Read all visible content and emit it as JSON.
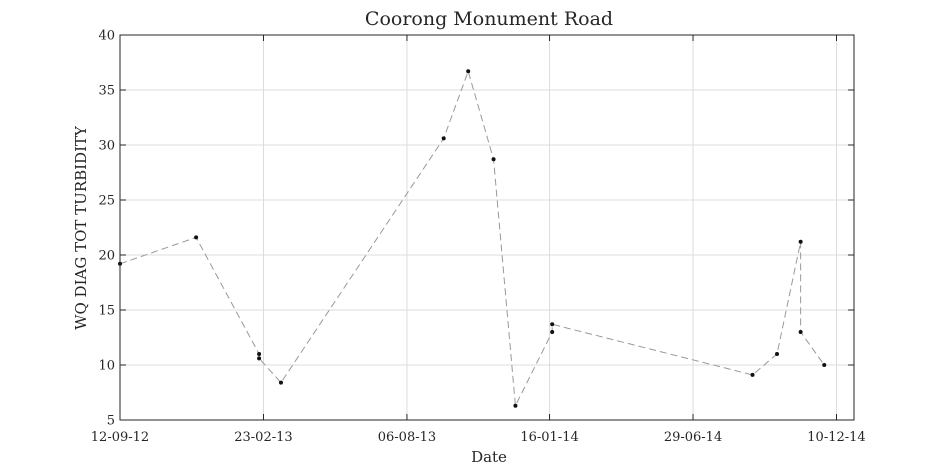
{
  "chart_data": {
    "type": "line",
    "title": "Coorong Monument Road",
    "xlabel": "Date",
    "ylabel": "WQ DIAG TOT TURBIDITY",
    "x_type": "date",
    "xlim": [
      "2012-09-12",
      "2014-12-30"
    ],
    "ylim": [
      5,
      40
    ],
    "x_ticks": [
      "2012-09-12",
      "2013-02-23",
      "2013-08-06",
      "2014-01-16",
      "2014-06-29",
      "2014-12-10"
    ],
    "x_tick_labels": [
      "12-09-12",
      "23-02-13",
      "06-08-13",
      "16-01-14",
      "29-06-14",
      "10-12-14"
    ],
    "y_ticks": [
      5,
      10,
      15,
      20,
      25,
      30,
      35,
      40
    ],
    "y_tick_labels": [
      "5",
      "10",
      "15",
      "20",
      "25",
      "30",
      "35",
      "40"
    ],
    "grid": true,
    "series": [
      {
        "color": "#999999",
        "marker_color": "#111111",
        "line_style": "dashed",
        "points": [
          {
            "x": "2012-09-12",
            "y": 19.2
          },
          {
            "x": "2012-12-08",
            "y": 21.6
          },
          {
            "x": "2013-02-18",
            "y": 11.0
          },
          {
            "x": "2013-02-18",
            "y": 10.6
          },
          {
            "x": "2013-03-15",
            "y": 8.4
          },
          {
            "x": "2013-09-17",
            "y": 30.6
          },
          {
            "x": "2013-10-15",
            "y": 36.7
          },
          {
            "x": "2013-11-13",
            "y": 28.7
          },
          {
            "x": "2013-12-08",
            "y": 6.3
          },
          {
            "x": "2014-01-19",
            "y": 13.0
          },
          {
            "x": "2014-01-19",
            "y": 13.7
          },
          {
            "x": "2014-09-05",
            "y": 9.1
          },
          {
            "x": "2014-10-03",
            "y": 11.0
          },
          {
            "x": "2014-10-30",
            "y": 21.2
          },
          {
            "x": "2014-10-30",
            "y": 13.0
          },
          {
            "x": "2014-11-26",
            "y": 10.0
          }
        ]
      }
    ]
  }
}
